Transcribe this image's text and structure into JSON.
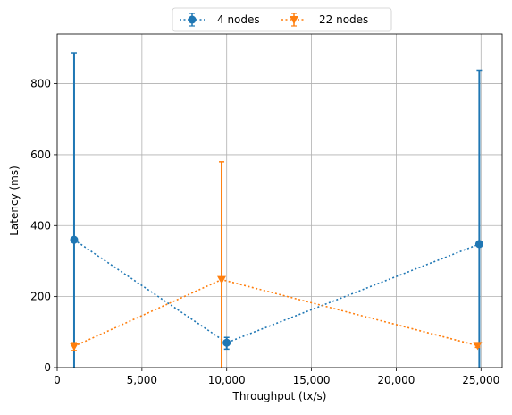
{
  "chart_data": {
    "type": "line",
    "xlabel": "Throughput (tx/s)",
    "ylabel": "Latency (ms)",
    "xlim": [
      0,
      26250
    ],
    "ylim": [
      0,
      940
    ],
    "xticks": [
      0,
      5000,
      10000,
      15000,
      20000,
      25000
    ],
    "xtick_labels": [
      "0",
      "5,000",
      "10,000",
      "15,000",
      "20,000",
      "25,000"
    ],
    "yticks": [
      0,
      200,
      400,
      600,
      800
    ],
    "ytick_labels": [
      "0",
      "200",
      "400",
      "600",
      "800"
    ],
    "grid": true,
    "legend_position": "top-center, outside",
    "series": [
      {
        "name": "4 nodes",
        "color": "#1f77b4",
        "marker": "circle",
        "line_style": "dotted",
        "x": [
          1000,
          10000,
          24900
        ],
        "y": [
          360,
          70,
          348
        ],
        "error_low": [
          0,
          52,
          0
        ],
        "error_high": [
          887,
          85,
          838
        ]
      },
      {
        "name": "22 nodes",
        "color": "#ff7f0e",
        "marker": "triangle-down",
        "line_style": "dotted",
        "x": [
          1000,
          9700,
          24800
        ],
        "y": [
          60,
          248,
          62
        ],
        "error_low": [
          48,
          0,
          57
        ],
        "error_high": [
          70,
          580,
          70
        ]
      }
    ]
  }
}
